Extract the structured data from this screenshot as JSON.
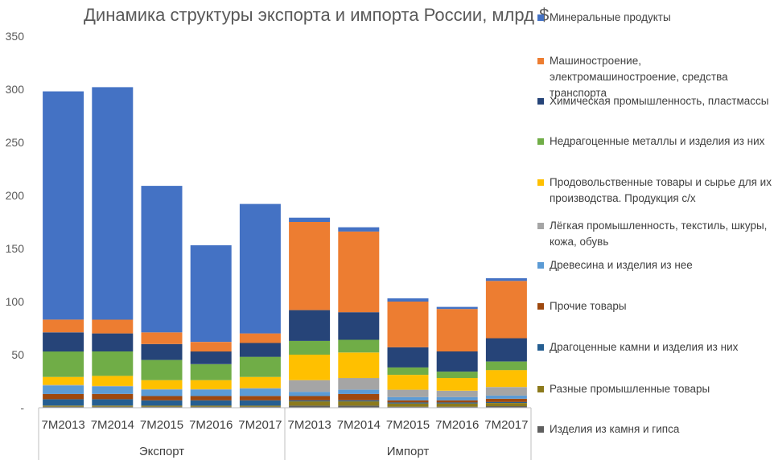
{
  "chart_data": {
    "type": "bar",
    "stacked": true,
    "title": "Динамика структуры экспорта и импорта России, млрд $",
    "ylim": [
      0,
      350
    ],
    "yticks": [
      "-",
      "50",
      "100",
      "150",
      "200",
      "250",
      "300",
      "350"
    ],
    "categories": [
      "7M2013",
      "7M2014",
      "7M2015",
      "7M2016",
      "7M2017",
      "7M2013",
      "7M2014",
      "7M2015",
      "7M2016",
      "7M2017"
    ],
    "groups": [
      {
        "label": "Экспорт",
        "categories": [
          0,
          1,
          2,
          3,
          4
        ]
      },
      {
        "label": "Импорт",
        "categories": [
          5,
          6,
          7,
          8,
          9
        ]
      }
    ],
    "legend_position": "right",
    "grid": false,
    "series": [
      {
        "name": "Изделия из камня и гипса",
        "color": "#5f5f5f",
        "values": [
          1,
          1,
          1,
          1,
          1,
          2,
          2,
          1,
          1,
          1.5
        ]
      },
      {
        "name": "Разные промышленные товары",
        "color": "#8c7a1c",
        "values": [
          1,
          1,
          1,
          1,
          1,
          4,
          4,
          3,
          3,
          3
        ]
      },
      {
        "name": "Драгоценные камни и изделия из них",
        "color": "#255e91",
        "values": [
          6,
          6,
          5,
          5,
          5,
          1,
          1,
          1,
          1,
          1
        ]
      },
      {
        "name": "Прочие товары",
        "color": "#9e480e",
        "values": [
          5,
          5,
          4,
          4,
          4,
          4,
          6,
          2,
          2,
          3
        ]
      },
      {
        "name": "Древесина и изделия из нее",
        "color": "#5b9bd5",
        "values": [
          8,
          7,
          6,
          6,
          7,
          4,
          4,
          3,
          3,
          3
        ]
      },
      {
        "name": "Лёгкая промышленность, текстиль, шкуры, кожа, обувь",
        "color": "#a5a5a5",
        "values": [
          0.5,
          0.5,
          0.5,
          0.5,
          0.5,
          11,
          11,
          7,
          6,
          8
        ]
      },
      {
        "name": "Продовольственные товары и сырье для их производства. Продукция с/х",
        "color": "#ffc000",
        "values": [
          7.5,
          9.5,
          8.5,
          8.5,
          10.5,
          24,
          24,
          14,
          12,
          16
        ]
      },
      {
        "name": "Недрагоценные металлы и изделия из них",
        "color": "#70ad47",
        "values": [
          24,
          23,
          19,
          15,
          19,
          13,
          12,
          7,
          6,
          8
        ]
      },
      {
        "name": "Химическая промышленность, пластмассы",
        "color": "#264478",
        "values": [
          18,
          17,
          15,
          12,
          13,
          29,
          26,
          19,
          19,
          22
        ]
      },
      {
        "name": "Машиностроение, электромашиностроение, средства транспорта",
        "color": "#ed7d31",
        "values": [
          12,
          13,
          11,
          9,
          9,
          83,
          76,
          43,
          40,
          54
        ]
      },
      {
        "name": "Минеральные продукты",
        "color": "#4472c4",
        "values": [
          215,
          219,
          138,
          91,
          122,
          4,
          4,
          3,
          2,
          2.5
        ]
      }
    ],
    "legend_order": [
      "Минеральные продукты",
      "Машиностроение, электромашиностроение, средства транспорта",
      "Химическая промышленность, пластмассы",
      "Недрагоценные металлы и изделия из них",
      "Продовольственные товары и сырье для их производства. Продукция с/х",
      "Лёгкая промышленность, текстиль, шкуры, кожа, обувь",
      "Древесина и изделия из нее",
      "Прочие товары",
      "Драгоценные камни и изделия из них",
      "Разные промышленные товары",
      "Изделия из камня и гипса"
    ]
  }
}
